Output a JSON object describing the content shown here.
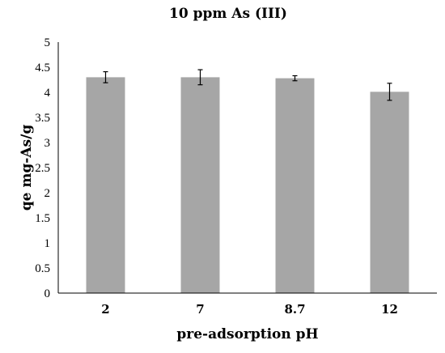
{
  "chart_data": {
    "type": "bar",
    "title": "10 ppm As (III)",
    "xlabel": "pre-adsorption pH",
    "ylabel": "qe mg-As/g",
    "categories": [
      "2",
      "7",
      "8.7",
      "12"
    ],
    "values": [
      4.3,
      4.3,
      4.28,
      4.01
    ],
    "errors": [
      0.11,
      0.15,
      0.05,
      0.17
    ],
    "ylim": [
      0,
      5
    ],
    "yticks": [
      "0",
      "0.5",
      "1",
      "1.5",
      "2",
      "2.5",
      "3",
      "3.5",
      "4",
      "4.5",
      "5"
    ],
    "grid": false,
    "colors": {
      "bar": "#a6a6a6",
      "axis": "#000000"
    }
  }
}
